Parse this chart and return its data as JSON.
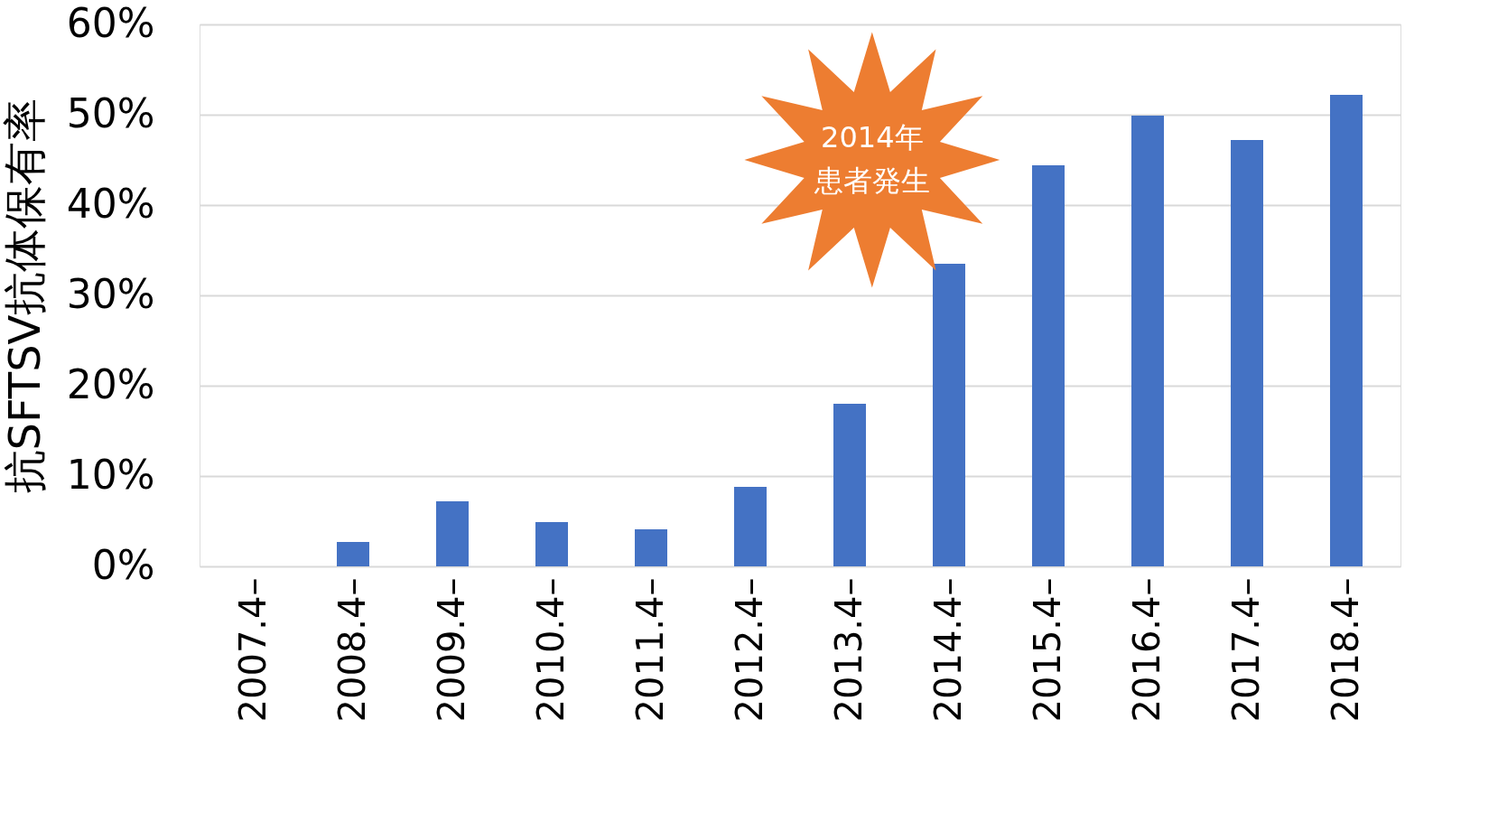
{
  "chart_data": {
    "type": "bar",
    "ylabel": "抗SFTSV抗体保有率",
    "categories": [
      "2007.4–",
      "2008.4–",
      "2009.4–",
      "2010.4–",
      "2011.4–",
      "2012.4–",
      "2013.4–",
      "2014.4–",
      "2015.4–",
      "2016.4–",
      "2017.4–",
      "2018.4–"
    ],
    "values": [
      0,
      2.7,
      7.2,
      4.9,
      4.1,
      8.8,
      18.0,
      33.5,
      44.4,
      49.9,
      47.2,
      52.2
    ],
    "color": "#4472c4",
    "ylim": [
      0,
      60
    ],
    "yticks": [
      {
        "value": 0,
        "label": "0%"
      },
      {
        "value": 10,
        "label": "10%"
      },
      {
        "value": 20,
        "label": "20%"
      },
      {
        "value": 30,
        "label": "30%"
      },
      {
        "value": 40,
        "label": "40%"
      },
      {
        "value": 50,
        "label": "50%"
      },
      {
        "value": 60,
        "label": "60%"
      }
    ],
    "grid": "y",
    "annotations": [
      "2014年",
      "患者発生"
    ]
  }
}
